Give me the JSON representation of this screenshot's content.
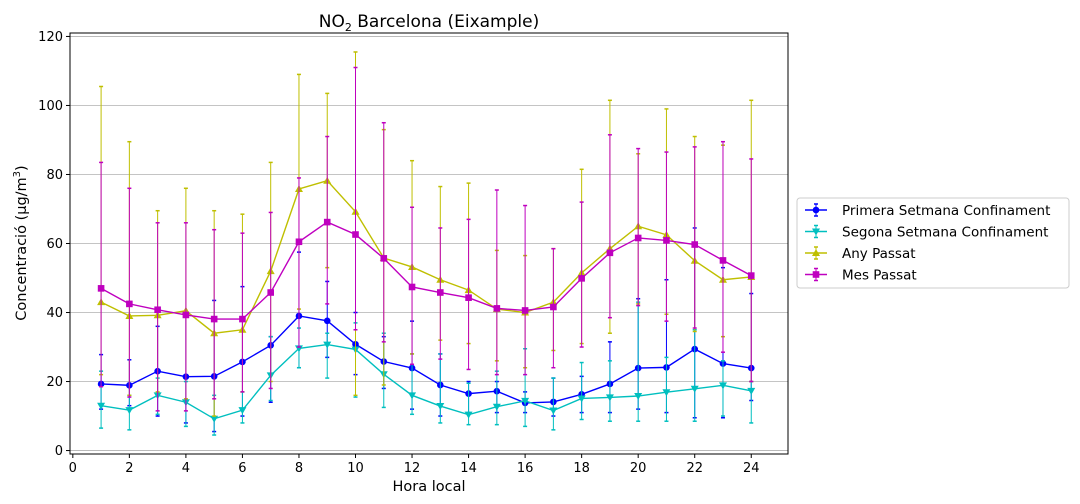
{
  "chart_data": {
    "type": "line",
    "title": "NO",
    "title_sub": "2",
    "title_rest": " Barcelona (Eixample)",
    "xlabel": "Hora local",
    "ylabel": "Concentració (µg/m",
    "ylabel_sup": "3",
    "ylabel_close": ")",
    "xlim": [
      -0.1,
      25.3
    ],
    "ylim": [
      -1,
      121
    ],
    "xticks": [
      0,
      2,
      4,
      6,
      8,
      10,
      12,
      14,
      16,
      18,
      20,
      22,
      24
    ],
    "yticks": [
      0,
      20,
      40,
      60,
      80,
      100,
      120
    ],
    "grid": "horizontal",
    "legend_position": "right",
    "x": [
      1,
      2,
      3,
      4,
      5,
      6,
      7,
      8,
      9,
      10,
      11,
      12,
      13,
      14,
      15,
      16,
      17,
      18,
      19,
      20,
      21,
      22,
      23,
      24
    ],
    "series": [
      {
        "name": "Primera Setmana Confinament",
        "color": "#0000ff",
        "marker": "circle",
        "values": [
          19.3,
          18.9,
          23.0,
          21.4,
          21.5,
          25.7,
          30.5,
          39.0,
          37.6,
          30.8,
          25.8,
          23.9,
          19.0,
          16.5,
          17.2,
          13.8,
          14.1,
          16.3,
          19.3,
          23.9,
          24.1,
          29.4,
          25.2,
          23.9
        ],
        "err_low": [
          12.0,
          13.0,
          10.0,
          8.0,
          5.5,
          10.0,
          14.0,
          24.0,
          27.0,
          22.0,
          18.0,
          12.0,
          10.0,
          11.0,
          11.0,
          11.0,
          10.0,
          11.0,
          11.0,
          12.0,
          11.0,
          9.5,
          9.5,
          14.5
        ],
        "err_high": [
          27.8,
          26.3,
          36.0,
          39.0,
          43.5,
          47.5,
          33.0,
          57.5,
          49.0,
          40.0,
          33.0,
          37.5,
          28.0,
          20.0,
          20.0,
          17.0,
          21.0,
          21.5,
          31.5,
          44.0,
          49.5,
          64.5,
          53.0,
          45.5
        ]
      },
      {
        "name": "Segona Setmana Confinament",
        "color": "#00bfbf",
        "marker": "triangle-down",
        "values": [
          13.0,
          11.7,
          16.0,
          14.0,
          9.2,
          11.7,
          21.8,
          29.6,
          30.7,
          29.3,
          22.1,
          16.0,
          12.9,
          10.4,
          12.7,
          14.4,
          11.6,
          15.1,
          15.4,
          15.8,
          16.9,
          17.9,
          18.9,
          17.3
        ],
        "err_low": [
          6.5,
          6.0,
          10.5,
          7.0,
          4.5,
          8.0,
          14.5,
          24.0,
          21.0,
          15.5,
          12.5,
          10.5,
          8.0,
          7.5,
          7.5,
          7.0,
          6.0,
          9.0,
          8.5,
          8.5,
          8.5,
          8.5,
          10.0,
          8.0
        ],
        "err_high": [
          23.0,
          16.0,
          21.0,
          20.0,
          16.0,
          17.0,
          33.0,
          35.5,
          34.0,
          37.0,
          34.0,
          28.0,
          28.0,
          19.5,
          23.0,
          29.5,
          21.0,
          25.5,
          26.0,
          43.0,
          27.0,
          35.0,
          26.0,
          20.0
        ]
      },
      {
        "name": "Any Passat",
        "color": "#bfbf00",
        "marker": "triangle-up",
        "values": [
          43.0,
          39.0,
          39.2,
          40.5,
          34.0,
          35.0,
          52.0,
          75.8,
          78.2,
          69.2,
          55.8,
          53.2,
          49.5,
          46.5,
          41.0,
          40.0,
          43.0,
          51.5,
          58.5,
          65.0,
          62.5,
          55.0,
          49.5,
          50.3
        ],
        "err_low": [
          22.0,
          16.0,
          17.0,
          15.0,
          10.0,
          17.0,
          20.0,
          41.0,
          53.0,
          16.0,
          19.0,
          28.0,
          32.0,
          31.0,
          26.0,
          24.0,
          29.0,
          31.0,
          34.0,
          42.5,
          39.5,
          34.5,
          33.0,
          20.0
        ],
        "err_high": [
          105.5,
          89.5,
          69.5,
          76.0,
          69.5,
          68.5,
          83.5,
          109.0,
          103.5,
          115.5,
          93.0,
          84.0,
          76.5,
          77.5,
          58.0,
          56.5,
          58.5,
          81.5,
          101.5,
          86.0,
          99.0,
          91.0,
          88.5,
          101.5
        ]
      },
      {
        "name": "Mes Passat",
        "color": "#bf00bf",
        "marker": "square",
        "values": [
          47.0,
          42.5,
          40.8,
          39.3,
          38.1,
          38.1,
          45.8,
          60.5,
          66.2,
          62.6,
          55.7,
          47.4,
          45.8,
          44.3,
          41.2,
          40.6,
          41.6,
          49.9,
          57.3,
          61.6,
          60.9,
          59.7,
          55.1,
          50.7
        ],
        "err_low": [
          18.5,
          15.5,
          11.5,
          11.5,
          15.0,
          17.0,
          18.0,
          30.0,
          42.5,
          35.0,
          31.5,
          25.0,
          26.5,
          23.5,
          22.0,
          22.0,
          24.0,
          30.0,
          38.5,
          42.0,
          37.5,
          35.5,
          28.5,
          20.0
        ],
        "err_high": [
          83.5,
          76.0,
          66.0,
          66.0,
          64.0,
          63.0,
          69.0,
          79.0,
          91.0,
          111.0,
          95.0,
          70.5,
          64.5,
          67.0,
          75.5,
          71.0,
          58.5,
          72.0,
          91.5,
          87.5,
          86.5,
          88.0,
          89.5,
          84.5
        ]
      }
    ]
  }
}
